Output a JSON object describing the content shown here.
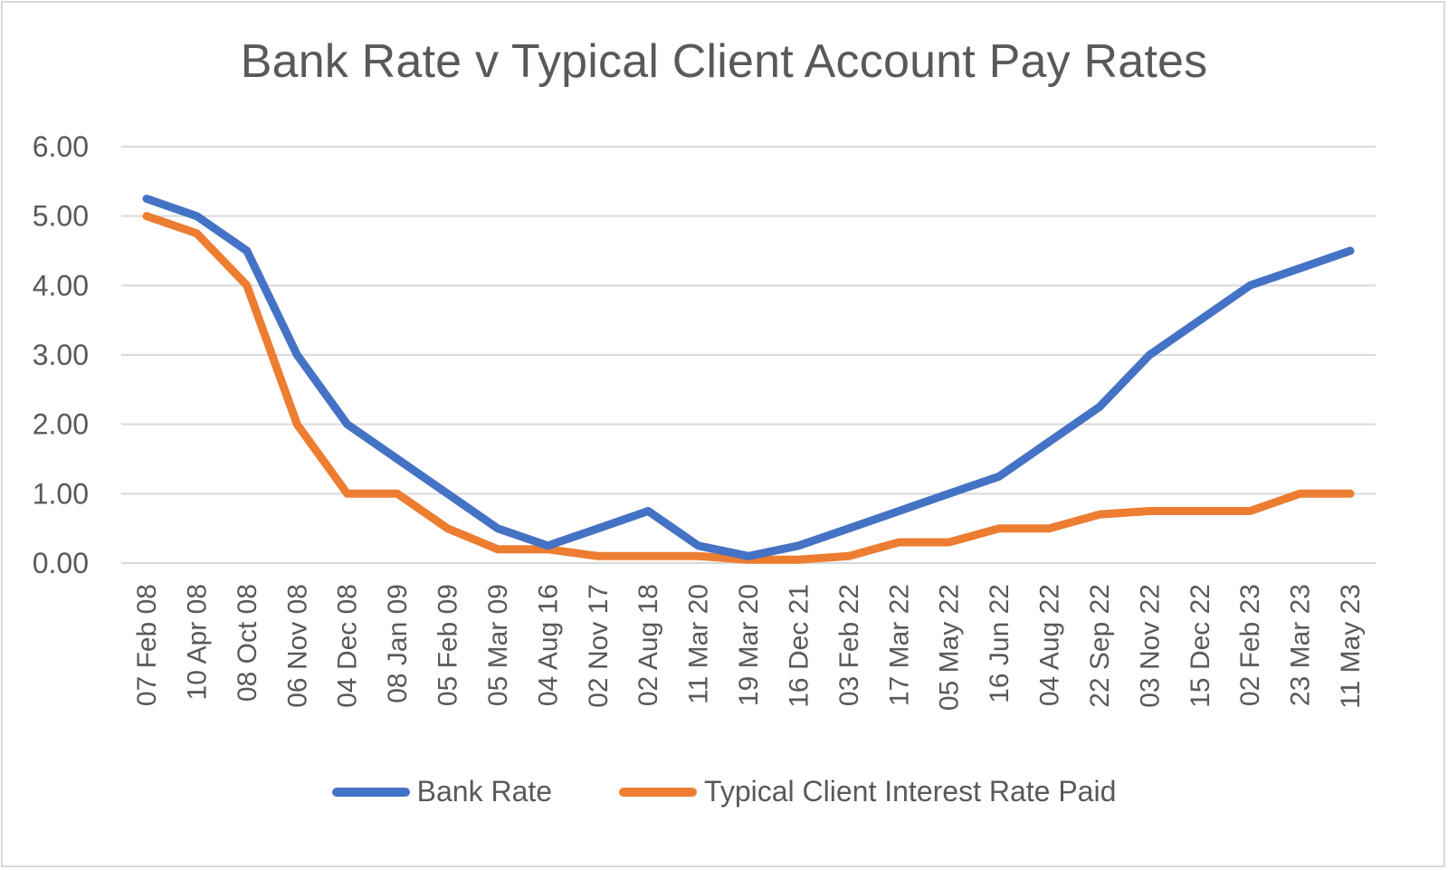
{
  "chart_data": {
    "type": "line",
    "title": "Bank Rate v Typical Client Account Pay Rates",
    "xlabel": "",
    "ylabel": "",
    "ylim": [
      0,
      6
    ],
    "yticks": [
      "0.00",
      "1.00",
      "2.00",
      "3.00",
      "4.00",
      "5.00",
      "6.00"
    ],
    "grid": true,
    "legend_position": "bottom",
    "categories": [
      "07 Feb 08",
      "10 Apr 08",
      "08 Oct 08",
      "06 Nov 08",
      "04 Dec 08",
      "08 Jan 09",
      "05 Feb 09",
      "05 Mar 09",
      "04 Aug 16",
      "02 Nov 17",
      "02 Aug 18",
      "11 Mar 20",
      "19 Mar 20",
      "16 Dec 21",
      "03 Feb 22",
      "17 Mar 22",
      "05 May 22",
      "16 Jun 22",
      "04 Aug 22",
      "22 Sep 22",
      "03 Nov 22",
      "15 Dec 22",
      "02 Feb 23",
      "23 Mar 23",
      "11 May 23"
    ],
    "series": [
      {
        "name": "Bank Rate",
        "color": "#4472c4",
        "values": [
          5.25,
          5.0,
          4.5,
          3.0,
          2.0,
          1.5,
          1.0,
          0.5,
          0.25,
          0.5,
          0.75,
          0.25,
          0.1,
          0.25,
          0.5,
          0.75,
          1.0,
          1.25,
          1.75,
          2.25,
          3.0,
          3.5,
          4.0,
          4.25,
          4.5
        ]
      },
      {
        "name": "Typical Client Interest Rate Paid",
        "color": "#ed7d31",
        "values": [
          5.0,
          4.75,
          4.0,
          2.0,
          1.0,
          1.0,
          0.5,
          0.2,
          0.2,
          0.1,
          0.1,
          0.1,
          0.05,
          0.05,
          0.1,
          0.3,
          0.3,
          0.5,
          0.5,
          0.7,
          0.75,
          0.75,
          0.75,
          1.0,
          1.0
        ]
      }
    ]
  },
  "legend": {
    "items": [
      {
        "label": "Bank Rate",
        "color": "#4472c4"
      },
      {
        "label": "Typical Client Interest Rate Paid",
        "color": "#ed7d31"
      }
    ]
  }
}
